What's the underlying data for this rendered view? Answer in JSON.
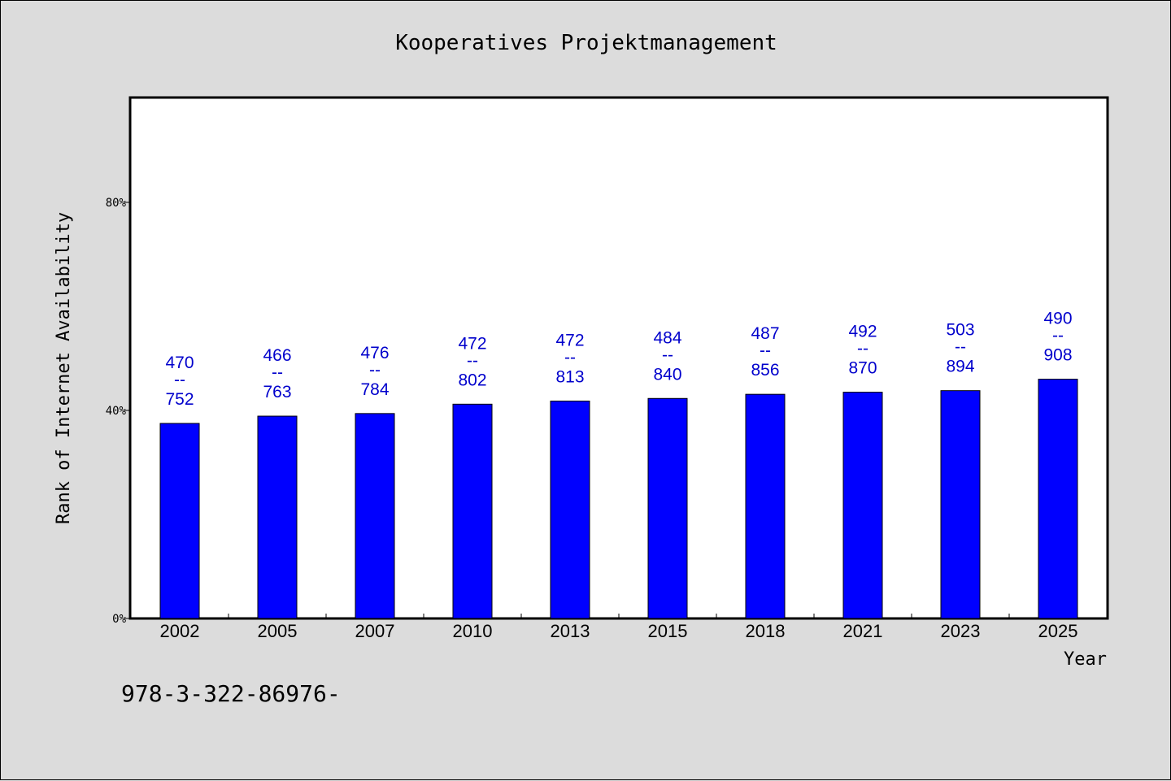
{
  "chart_data": {
    "type": "bar",
    "title": "Kooperatives Projektmanagement",
    "xlabel": "Year",
    "ylabel": "Rank of Internet Availability",
    "categories": [
      "2002",
      "2005",
      "2007",
      "2010",
      "2013",
      "2015",
      "2018",
      "2021",
      "2023",
      "2025"
    ],
    "values": [
      37.5,
      38.9,
      39.4,
      41.2,
      41.8,
      42.3,
      43.1,
      43.5,
      43.8,
      46.0
    ],
    "labels_top": [
      "470",
      "466",
      "476",
      "472",
      "472",
      "484",
      "487",
      "492",
      "503",
      "490"
    ],
    "labels_sep": "--",
    "labels_bottom": [
      "752",
      "763",
      "784",
      "802",
      "813",
      "840",
      "856",
      "870",
      "894",
      "908"
    ],
    "ylim": [
      0,
      100
    ],
    "yticks": [
      {
        "value": 0,
        "label": "0%"
      },
      {
        "value": 40,
        "label": "40%"
      },
      {
        "value": 80,
        "label": "80%"
      }
    ],
    "bar_color": "#0000ff",
    "label_color": "#0000cc",
    "grid": false,
    "legend": "none"
  },
  "footnote": "978-3-322-86976-"
}
